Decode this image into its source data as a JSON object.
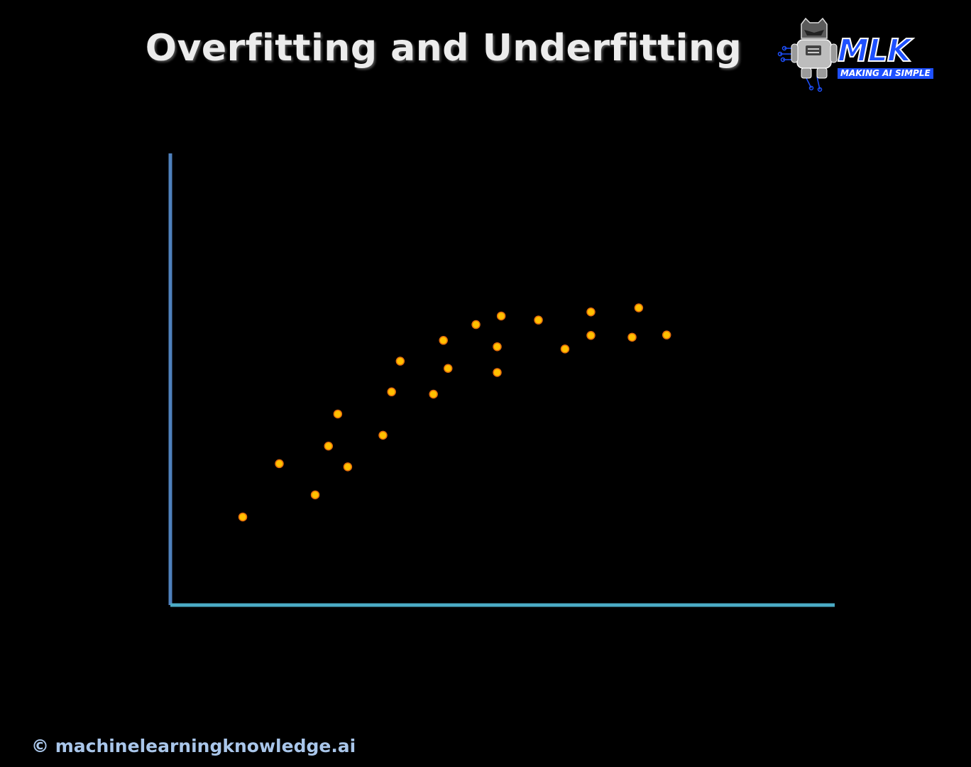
{
  "header": {
    "title": "Overfitting and Underfitting"
  },
  "logo": {
    "brand": "MLK",
    "tagline": "MAKING AI SIMPLE",
    "icon": "robot-icon"
  },
  "footer": {
    "copyright": "© machinelearningknowledge.ai"
  },
  "colors": {
    "background": "#000000",
    "y_axis": "#4f81bd",
    "x_axis": "#4bacc6",
    "point_fill": "#ffc000",
    "point_stroke": "#e46c0a",
    "brand_blue": "#1e50ff"
  },
  "chart_data": {
    "type": "scatter",
    "title": "",
    "xlabel": "",
    "ylabel": "",
    "xlim": [
      0,
      100
    ],
    "ylim": [
      0,
      100
    ],
    "grid": false,
    "series": [
      {
        "x": [
          10.9,
          16.4,
          21.8,
          23.8,
          25.2,
          26.7,
          32.0,
          33.3,
          34.6,
          39.6,
          41.1,
          41.8,
          46.0,
          49.2,
          49.2,
          49.8,
          55.4,
          59.4,
          63.3,
          63.3,
          69.5,
          70.5,
          74.7
        ],
        "y": [
          19.5,
          31.3,
          24.4,
          35.2,
          42.3,
          30.6,
          37.6,
          47.2,
          54.0,
          46.7,
          58.6,
          52.4,
          62.1,
          51.5,
          57.2,
          64.0,
          63.1,
          56.7,
          59.7,
          64.9,
          59.3,
          65.8,
          59.8
        ]
      }
    ]
  }
}
